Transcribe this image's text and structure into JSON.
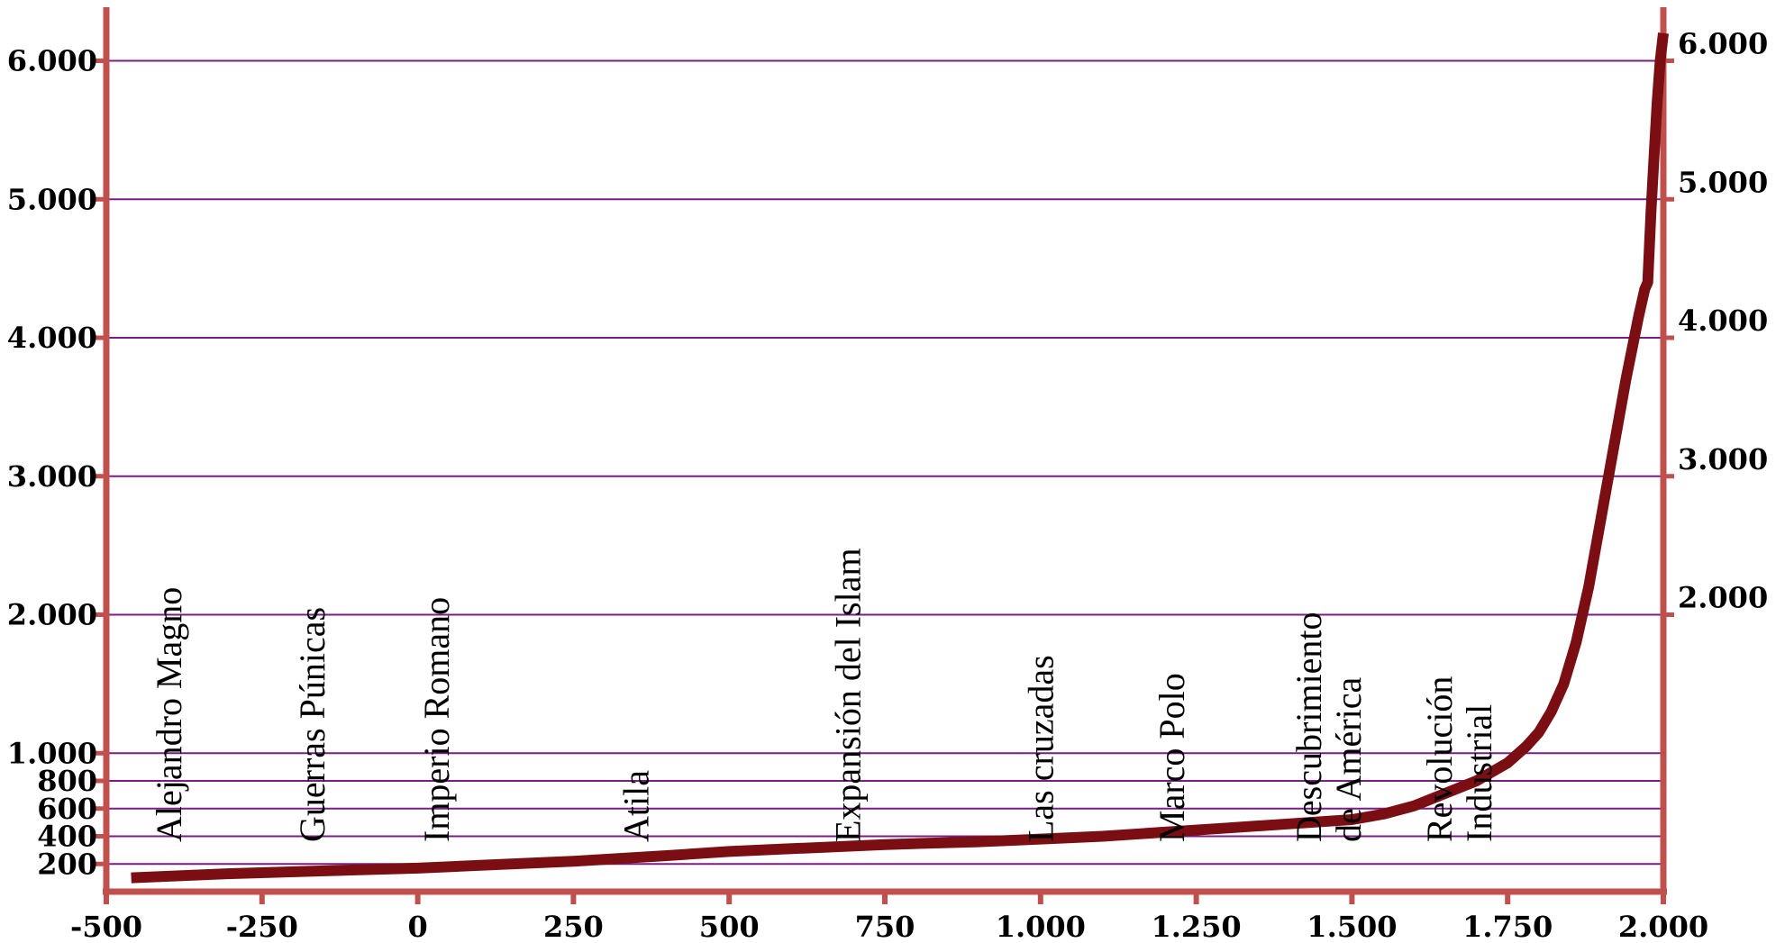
{
  "chart_data": {
    "type": "line",
    "title": "",
    "xlabel": "",
    "ylabel": "",
    "xlim": [
      -500,
      2000
    ],
    "ylim": [
      0,
      6500
    ],
    "grid": true,
    "x_ticks": [
      "-500",
      "-250",
      "0",
      "250",
      "500",
      "750",
      "1.000",
      "1.250",
      "1.500",
      "1.750",
      "2.000"
    ],
    "x_tick_values": [
      -500,
      -250,
      0,
      250,
      500,
      750,
      1000,
      1250,
      1500,
      1750,
      2000
    ],
    "y_ticks_left": [
      "200",
      "400",
      "600",
      "800",
      "1.000",
      "2.000",
      "3.000",
      "4.000",
      "5.000",
      "6.000"
    ],
    "y_ticks_left_values": [
      200,
      400,
      600,
      800,
      1000,
      2000,
      3000,
      4000,
      5000,
      6000
    ],
    "y_ticks_right": [
      "2.000",
      "3.000",
      "4.000",
      "5.000",
      "6.000"
    ],
    "y_ticks_right_values": [
      2000,
      3000,
      4000,
      5000,
      6000
    ],
    "series": [
      {
        "x": [
          -460,
          -300,
          -150,
          0,
          100,
          250,
          400,
          500,
          600,
          750,
          900,
          1000,
          1100,
          1200,
          1300,
          1400,
          1500,
          1550,
          1600,
          1650,
          1700,
          1750,
          1780,
          1800,
          1820,
          1840,
          1860,
          1880,
          1900,
          1920,
          1940,
          1960,
          1970,
          1975,
          1980,
          1985,
          1990,
          1995,
          2000
        ],
        "y": [
          100,
          130,
          150,
          170,
          190,
          220,
          260,
          290,
          310,
          340,
          360,
          380,
          400,
          430,
          460,
          490,
          520,
          560,
          620,
          710,
          800,
          930,
          1050,
          1150,
          1300,
          1500,
          1800,
          2200,
          2700,
          3200,
          3700,
          4150,
          4350,
          4400,
          4900,
          5300,
          5700,
          6000,
          6200
        ],
        "color": "#7a0e12"
      }
    ],
    "annotations": [
      {
        "x": -380,
        "text": "Alejandro Magno"
      },
      {
        "x": -150,
        "text": "Guerras Púnicas"
      },
      {
        "x": 50,
        "text": "Imperio Romano"
      },
      {
        "x": 370,
        "text": "Atila"
      },
      {
        "x": 710,
        "text": "Expansión del Islam"
      },
      {
        "x": 1020,
        "text": "Las cruzadas"
      },
      {
        "x": 1230,
        "text": "Marco Polo"
      },
      {
        "x": 1450,
        "lines": [
          "Descubrimiento",
          "de América"
        ]
      },
      {
        "x": 1660,
        "lines": [
          "Revolución",
          "Industrial"
        ]
      }
    ],
    "colors": {
      "axis": "#c0504d",
      "grid": "#7a1d86",
      "line": "#7a0e12"
    }
  }
}
